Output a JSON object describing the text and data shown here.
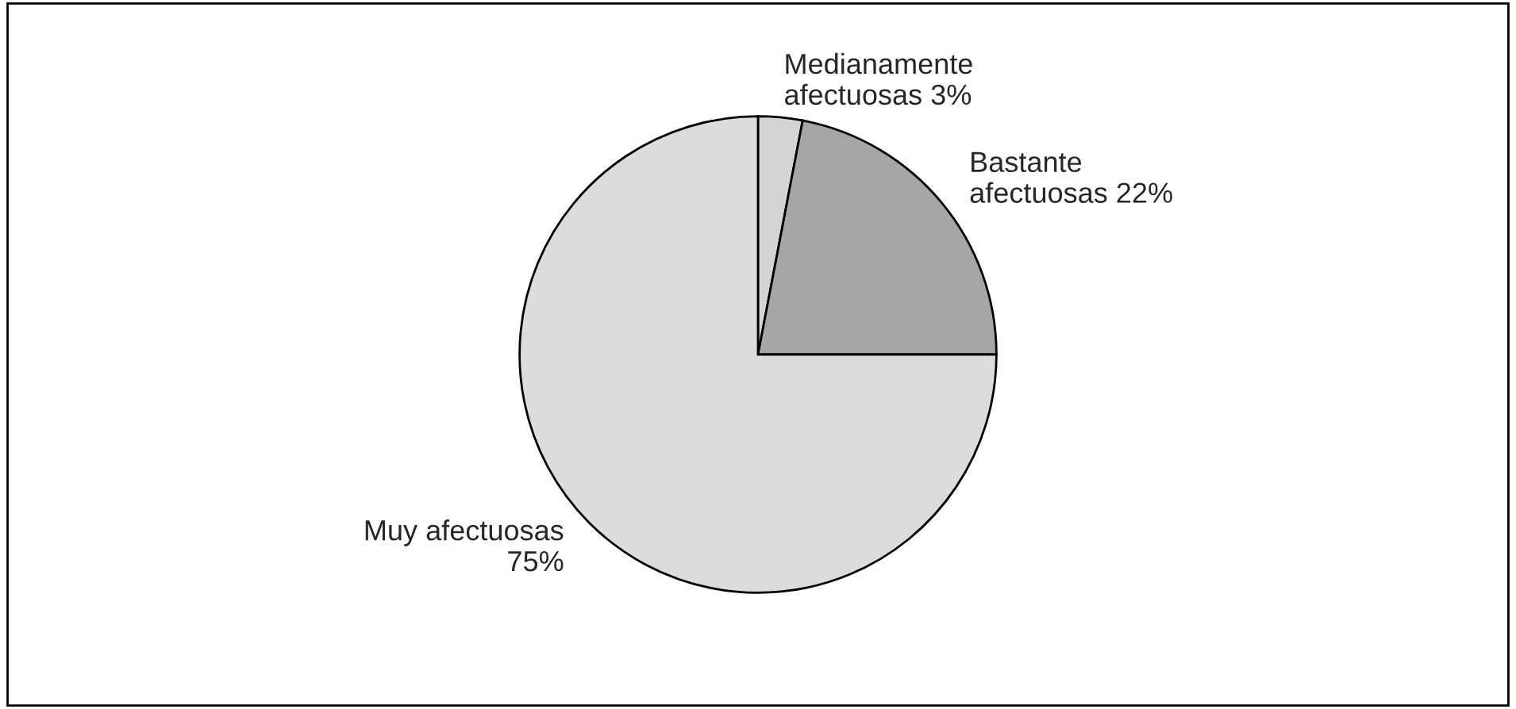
{
  "chart_data": {
    "type": "pie",
    "categories": [
      "Medianamente afectuosas 3%",
      "Bastante afectuosas 22%",
      "Muy afectuosas 75%"
    ],
    "values": [
      3,
      22,
      75
    ],
    "colors": [
      "#d4d4d4",
      "#a6a6a6",
      "#dcdcdc"
    ]
  }
}
